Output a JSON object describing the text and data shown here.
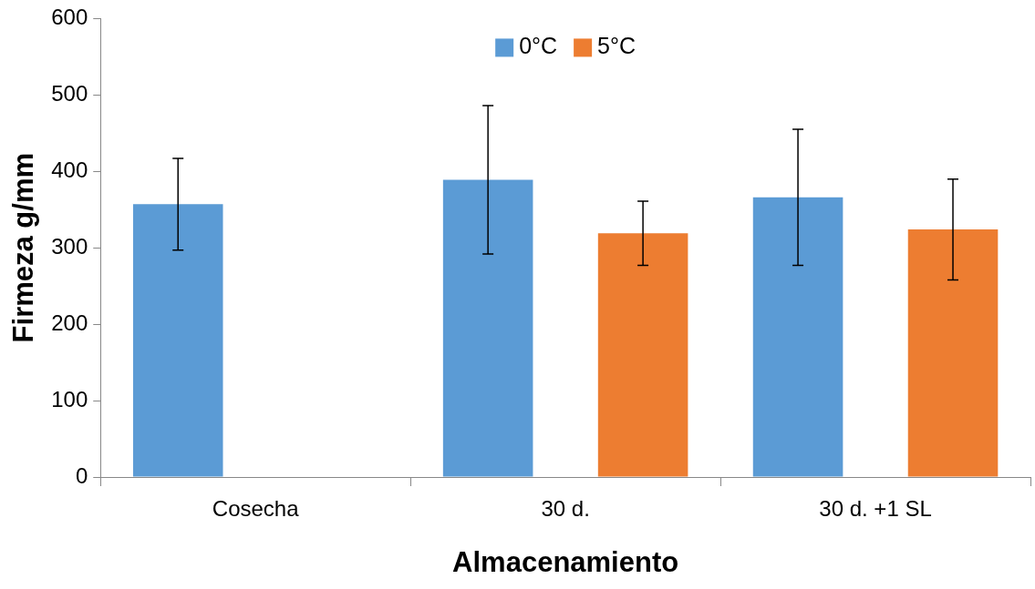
{
  "chart_data": {
    "type": "bar",
    "xlabel": "Almacenamiento",
    "ylabel": "Firmeza g/mm",
    "categories": [
      "Cosecha",
      "30 d.",
      "30 d. +1 SL"
    ],
    "series": [
      {
        "name": "0°C",
        "color": "#5b9bd5",
        "values": [
          357,
          389,
          366
        ],
        "errors": [
          60,
          97,
          89
        ]
      },
      {
        "name": "5°C",
        "color": "#ed7d31",
        "values": [
          null,
          319,
          324
        ],
        "errors": [
          null,
          42,
          66
        ]
      }
    ],
    "ylim": [
      0,
      600
    ],
    "yticks": [
      0,
      100,
      200,
      300,
      400,
      500,
      600
    ],
    "grid": false,
    "legend": "top"
  }
}
